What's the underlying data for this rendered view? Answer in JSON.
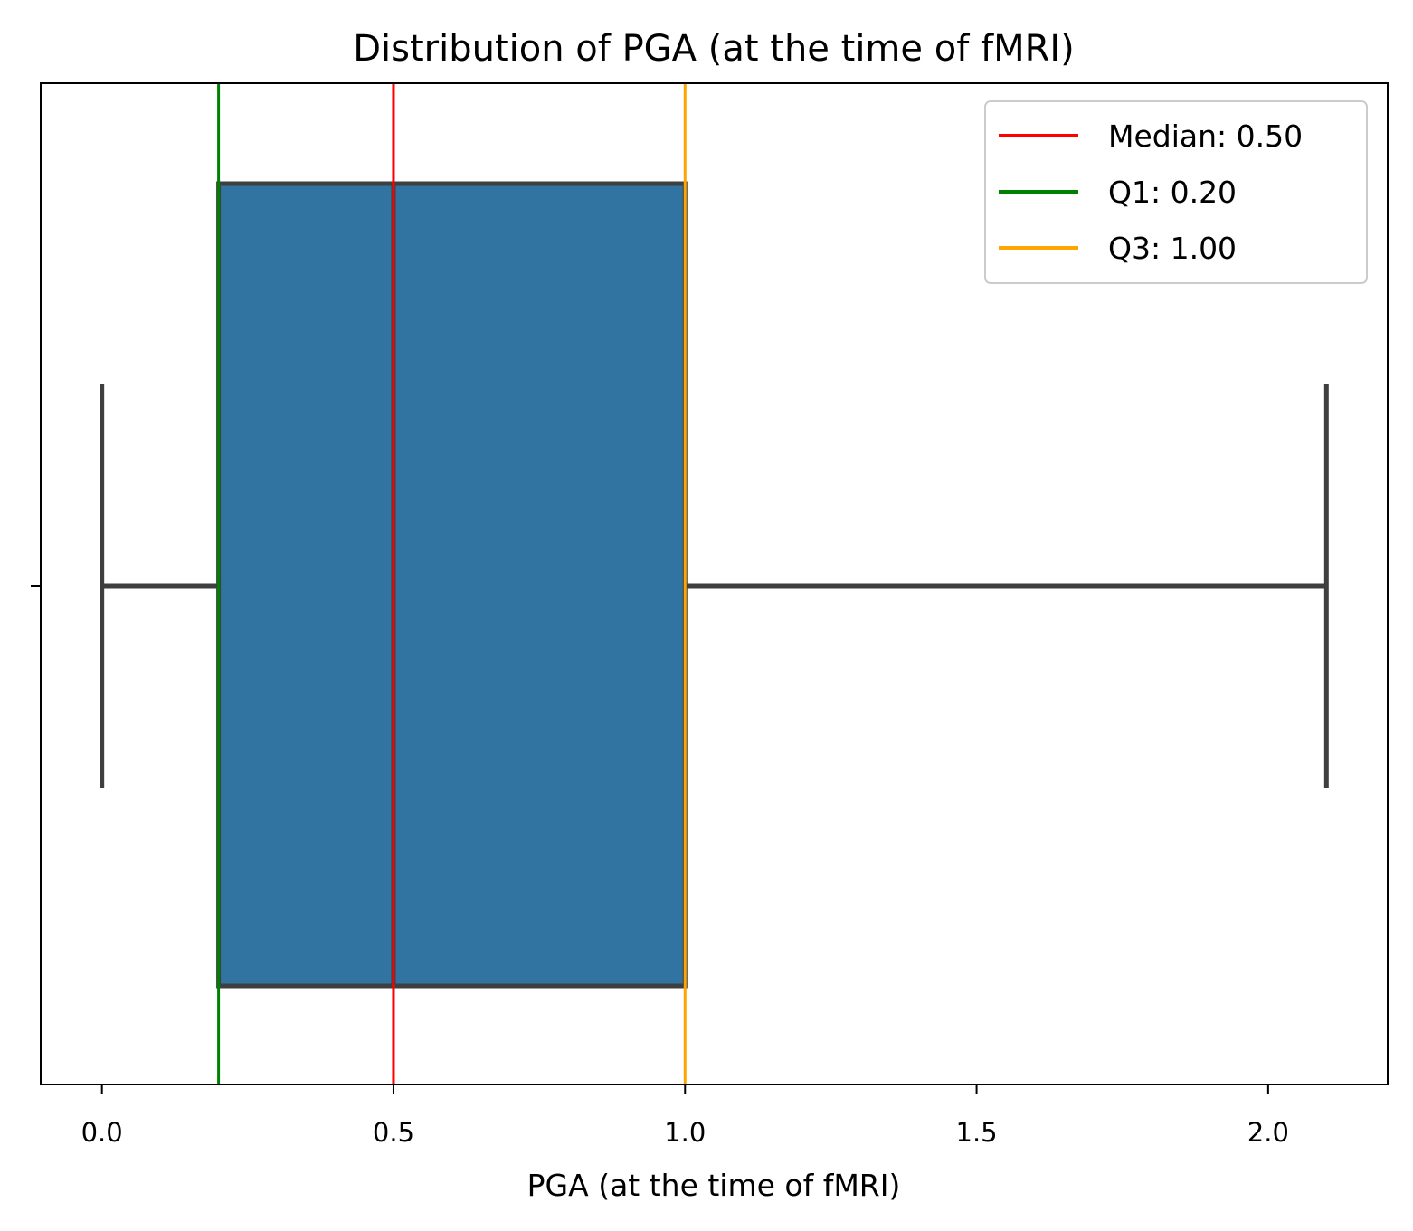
{
  "chart_data": {
    "type": "box",
    "title": "Distribution of PGA (at the time of fMRI)",
    "xlabel": "PGA (at the time of fMRI)",
    "ylabel": "",
    "xlim": [
      -0.105,
      2.205
    ],
    "x_ticks": [
      0.0,
      0.5,
      1.0,
      1.5,
      2.0
    ],
    "x_tick_labels": [
      "0.0",
      "0.5",
      "1.0",
      "1.5",
      "2.0"
    ],
    "box": {
      "min": 0.0,
      "q1": 0.2,
      "median": 0.5,
      "q3": 1.0,
      "max": 2.1,
      "fill_color": "#3274a1",
      "edge_color": "#3f3f3f"
    },
    "reference_lines": [
      {
        "label": "Median: 0.50",
        "value": 0.5,
        "color": "#ff0000"
      },
      {
        "label": "Q1: 0.20",
        "value": 0.2,
        "color": "#008000"
      },
      {
        "label": "Q3: 1.00",
        "value": 1.0,
        "color": "#ffa500"
      }
    ],
    "legend_position": "upper right",
    "grid": false
  }
}
